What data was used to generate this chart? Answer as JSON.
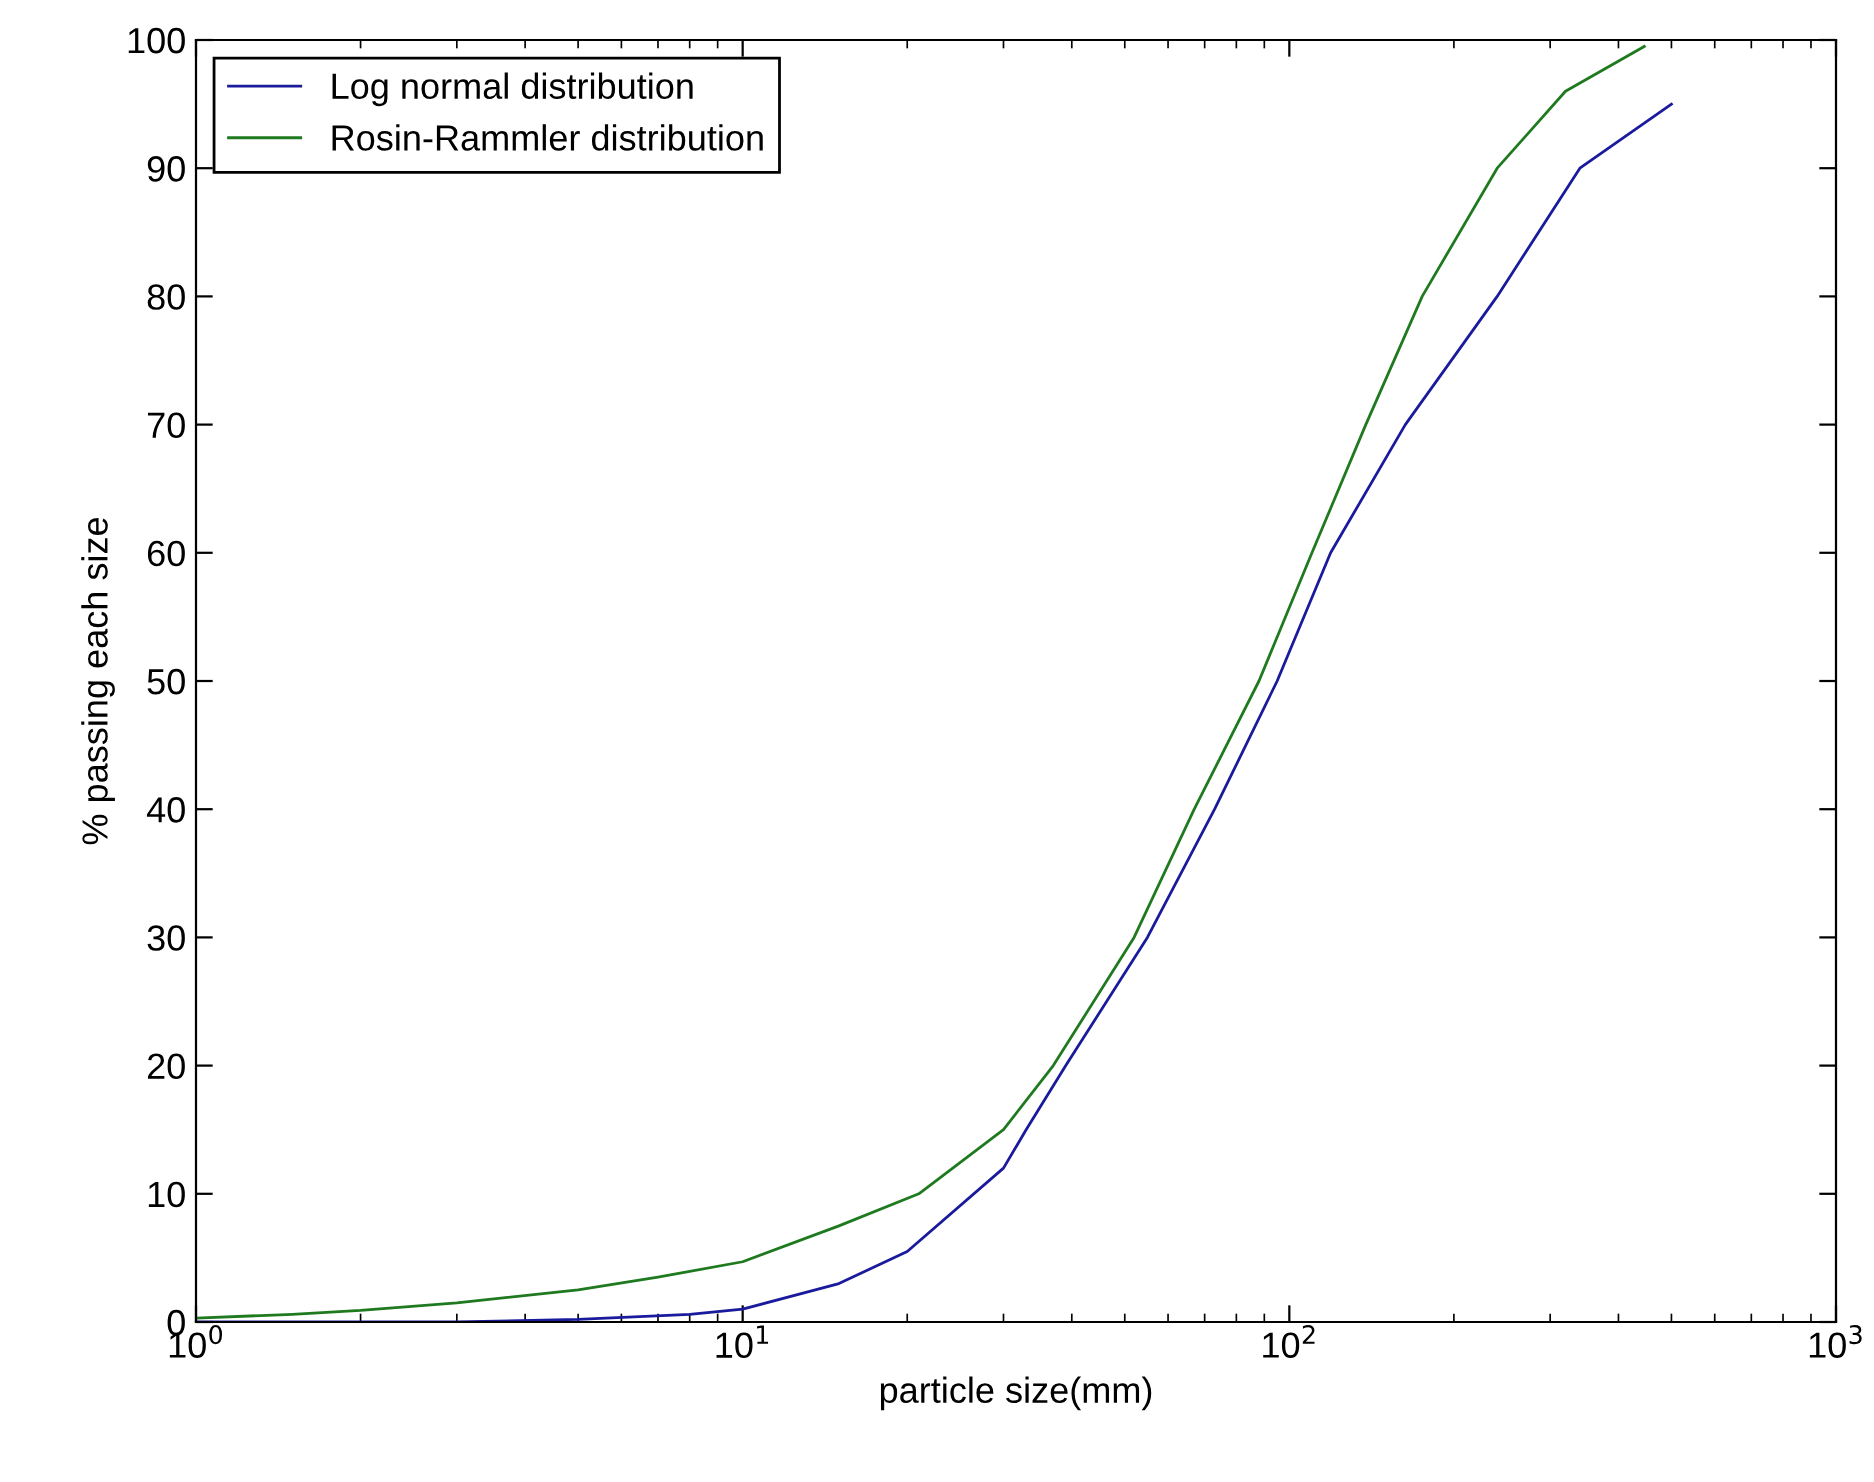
{
  "chart_data": {
    "type": "line",
    "xlabel": "particle size(mm)",
    "ylabel": "% passing each size",
    "log": "x",
    "xlim": [
      1,
      1000
    ],
    "xticks": [
      {
        "value": 1,
        "label": "10$^{0}$"
      },
      {
        "value": 10,
        "label": "10$^{1}$"
      },
      {
        "value": 100,
        "label": "10$^{2}$"
      },
      {
        "value": 1000,
        "label": "10$^{3}$"
      }
    ],
    "ylim": [
      0,
      100
    ],
    "yticks": [
      0,
      10,
      20,
      30,
      40,
      50,
      60,
      70,
      80,
      90,
      100
    ],
    "grid": false,
    "legend": "top left",
    "marker": "none",
    "line_style": "solid",
    "series": [
      {
        "name": "Log normal distribution",
        "color": "#1a1a9c",
        "x": [
          1,
          3,
          5,
          8,
          10,
          15,
          20,
          30,
          33,
          39,
          55,
          73,
          95,
          119,
          163,
          240,
          340,
          500
        ],
        "values": [
          0,
          0,
          0.2,
          0.6,
          1,
          3,
          5.5,
          12,
          15,
          20,
          30,
          40,
          50,
          60,
          70,
          80,
          90,
          95
        ]
      },
      {
        "name": "Rosin-Rammler distribution",
        "color": "#1f7a1f",
        "x": [
          1,
          1.5,
          2,
          3,
          5,
          7,
          10,
          15,
          21,
          30,
          37,
          52,
          67,
          88,
          110,
          138,
          175,
          240,
          320,
          446
        ],
        "values": [
          0.3,
          0.6,
          0.9,
          1.5,
          2.5,
          3.5,
          4.7,
          7.5,
          10,
          15,
          20,
          30,
          40,
          50,
          60,
          70,
          80,
          90,
          96,
          99.5
        ]
      }
    ]
  }
}
